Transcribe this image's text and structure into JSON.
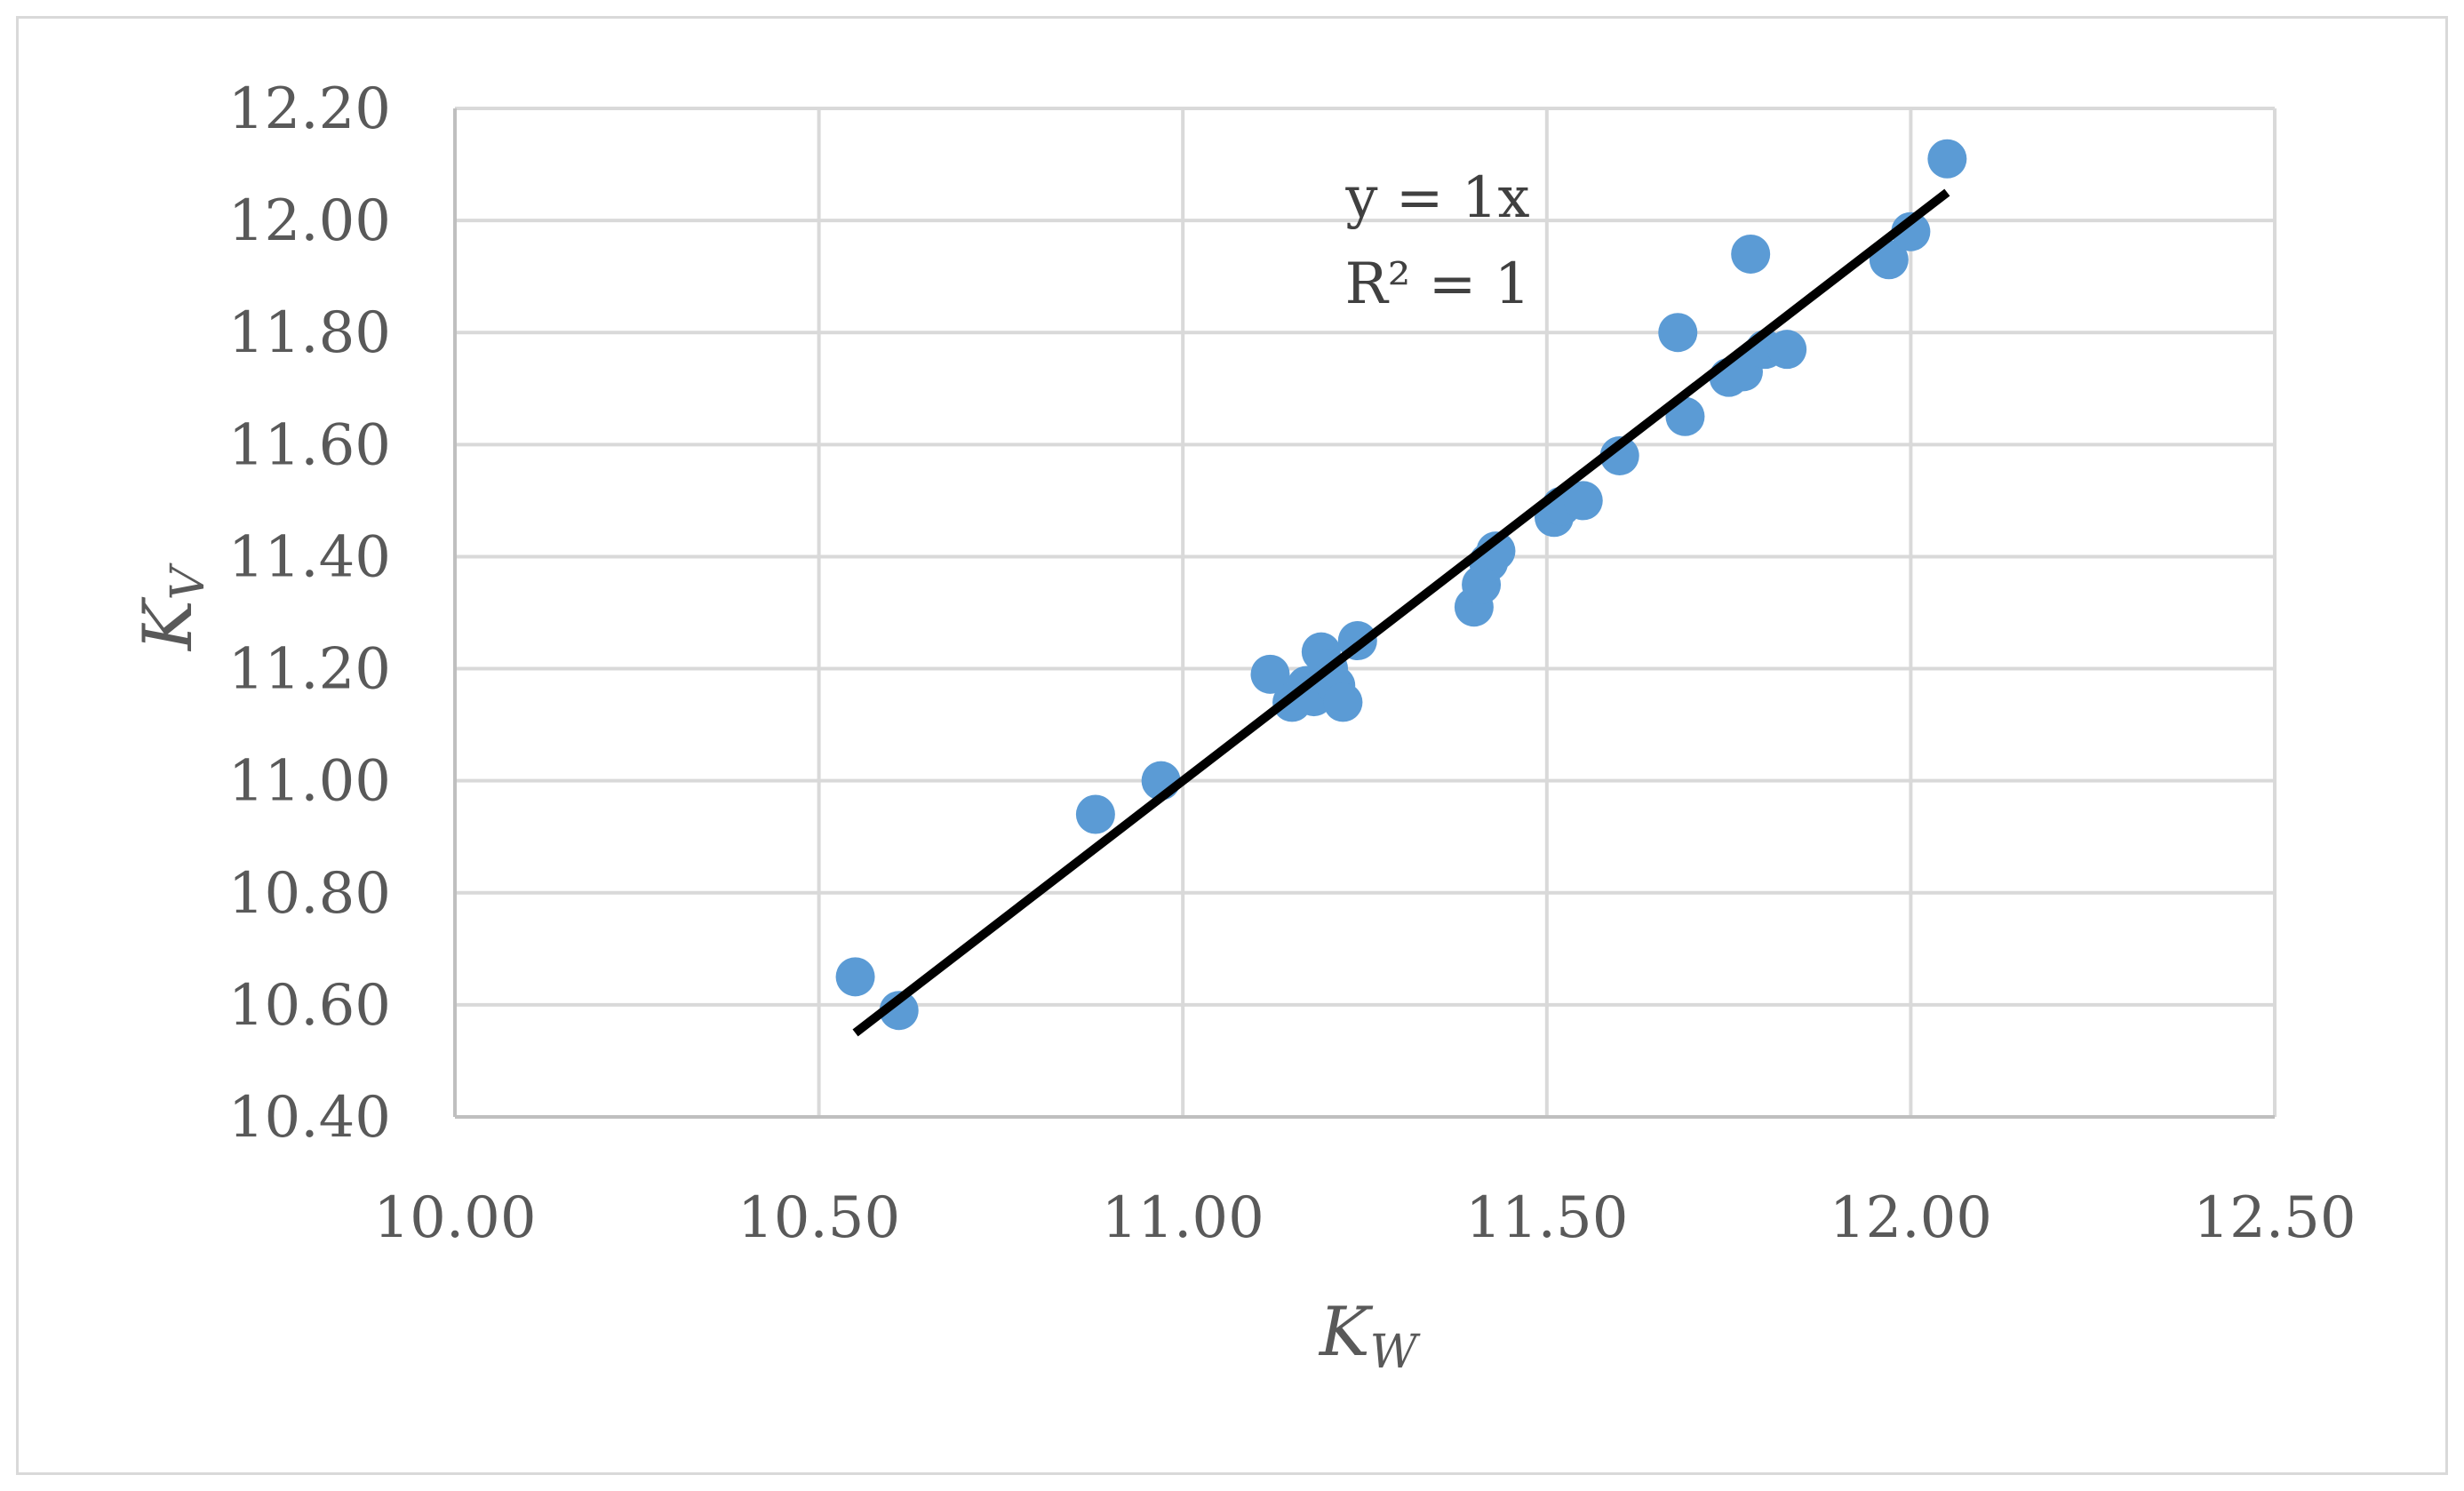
{
  "chart_data": {
    "type": "scatter",
    "xlabel": {
      "main": "K",
      "sub": "W"
    },
    "ylabel": {
      "main": "K",
      "sub": "V"
    },
    "xlim": [
      10.0,
      12.5
    ],
    "ylim": [
      10.4,
      12.2
    ],
    "x_ticks": [
      "10.00",
      "10.50",
      "11.00",
      "11.50",
      "12.00",
      "12.50"
    ],
    "y_ticks": [
      "10.40",
      "10.60",
      "10.80",
      "11.00",
      "11.20",
      "11.40",
      "11.60",
      "11.80",
      "12.00",
      "12.20"
    ],
    "grid": true,
    "marker_color": "#5b9bd5",
    "trendline_color": "#000000",
    "trendline": {
      "x": [
        10.55,
        12.05
      ],
      "y": [
        10.55,
        12.05
      ]
    },
    "annotation": [
      "y = 1x",
      "R² = 1"
    ],
    "points": [
      {
        "x": 10.55,
        "y": 10.65
      },
      {
        "x": 10.61,
        "y": 10.59
      },
      {
        "x": 10.88,
        "y": 10.94
      },
      {
        "x": 10.97,
        "y": 11.0
      },
      {
        "x": 11.12,
        "y": 11.19
      },
      {
        "x": 11.15,
        "y": 11.14
      },
      {
        "x": 11.17,
        "y": 11.17
      },
      {
        "x": 11.18,
        "y": 11.15
      },
      {
        "x": 11.19,
        "y": 11.23
      },
      {
        "x": 11.2,
        "y": 11.2
      },
      {
        "x": 11.21,
        "y": 11.17
      },
      {
        "x": 11.22,
        "y": 11.14
      },
      {
        "x": 11.24,
        "y": 11.25
      },
      {
        "x": 11.4,
        "y": 11.31
      },
      {
        "x": 11.41,
        "y": 11.35
      },
      {
        "x": 11.42,
        "y": 11.39
      },
      {
        "x": 11.43,
        "y": 11.41
      },
      {
        "x": 11.51,
        "y": 11.47
      },
      {
        "x": 11.52,
        "y": 11.49
      },
      {
        "x": 11.55,
        "y": 11.5
      },
      {
        "x": 11.6,
        "y": 11.58
      },
      {
        "x": 11.68,
        "y": 11.8
      },
      {
        "x": 11.69,
        "y": 11.65
      },
      {
        "x": 11.75,
        "y": 11.72
      },
      {
        "x": 11.77,
        "y": 11.73
      },
      {
        "x": 11.78,
        "y": 11.94
      },
      {
        "x": 11.8,
        "y": 11.77
      },
      {
        "x": 11.83,
        "y": 11.77
      },
      {
        "x": 11.97,
        "y": 11.93
      },
      {
        "x": 12.0,
        "y": 11.98
      },
      {
        "x": 12.05,
        "y": 12.11
      }
    ]
  }
}
